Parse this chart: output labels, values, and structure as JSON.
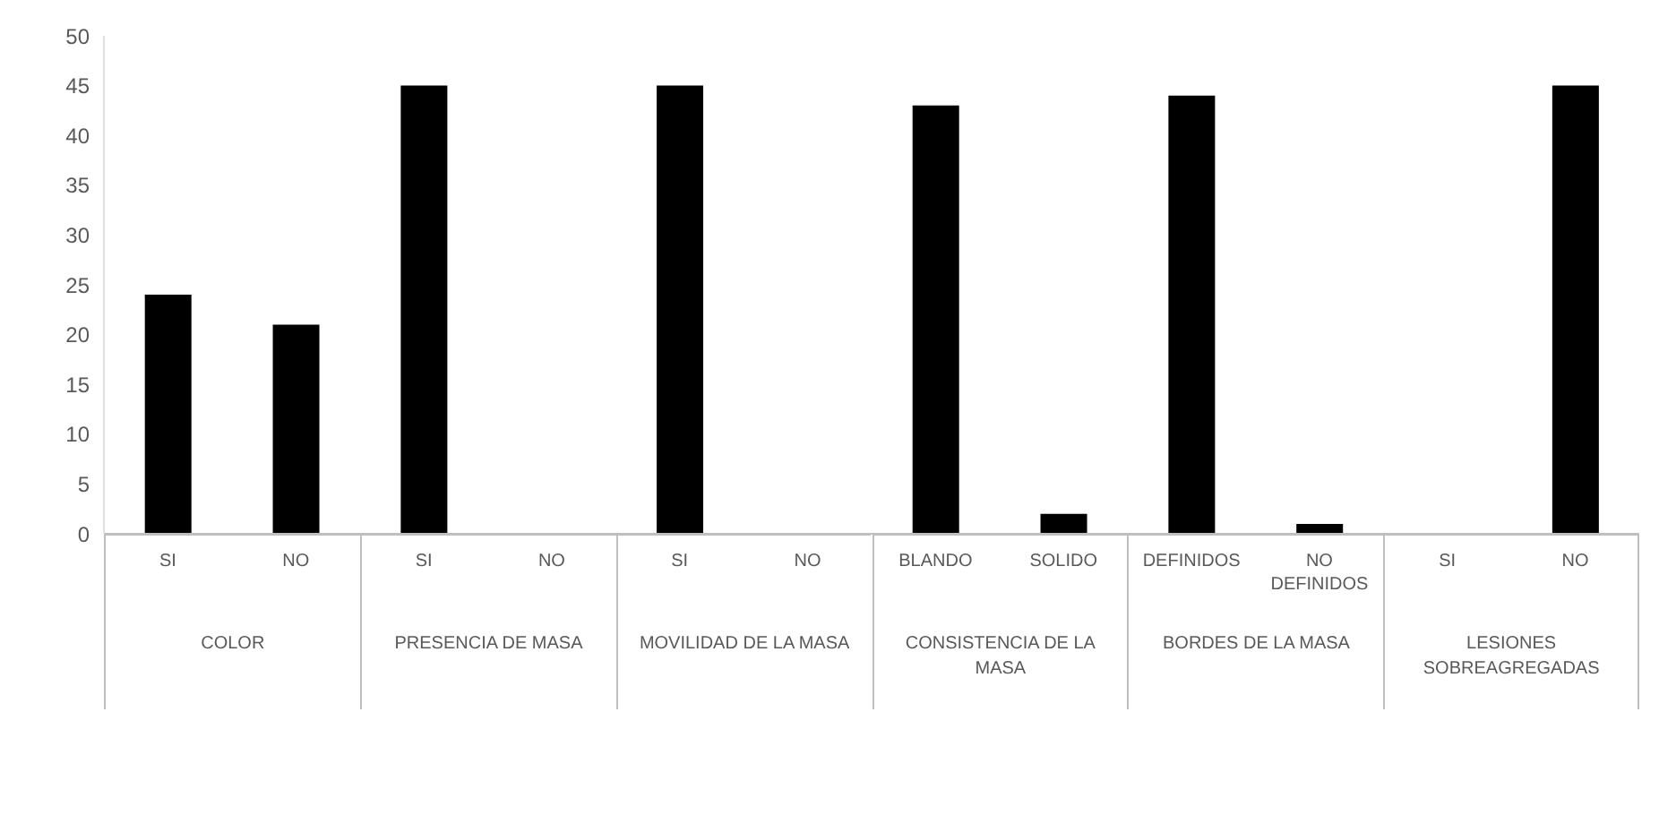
{
  "chart_data": {
    "type": "bar",
    "categories": [
      "SI",
      "NO",
      "SI",
      "NO",
      "SI",
      "NO",
      "BLANDO",
      "SOLIDO",
      "DEFINIDOS",
      "NO DEFINIDOS",
      "SI",
      "NO"
    ],
    "values": [
      24,
      21,
      45,
      0,
      45,
      0,
      43,
      2,
      44,
      1,
      0,
      45
    ],
    "color": "#000000",
    "ylim": [
      0,
      50
    ],
    "yticks": [
      0,
      5,
      10,
      15,
      20,
      25,
      30,
      35,
      40,
      45,
      50
    ],
    "grid": false,
    "legend": false,
    "annotations": [
      "COLOR",
      "PRESENCIA DE MASA",
      "MOVILIDAD DE LA MASA",
      "CONSISTENCIA DE LA MASA",
      "BORDES DE LA MASA",
      "LESIONES SOBREAGREGADAS"
    ]
  }
}
